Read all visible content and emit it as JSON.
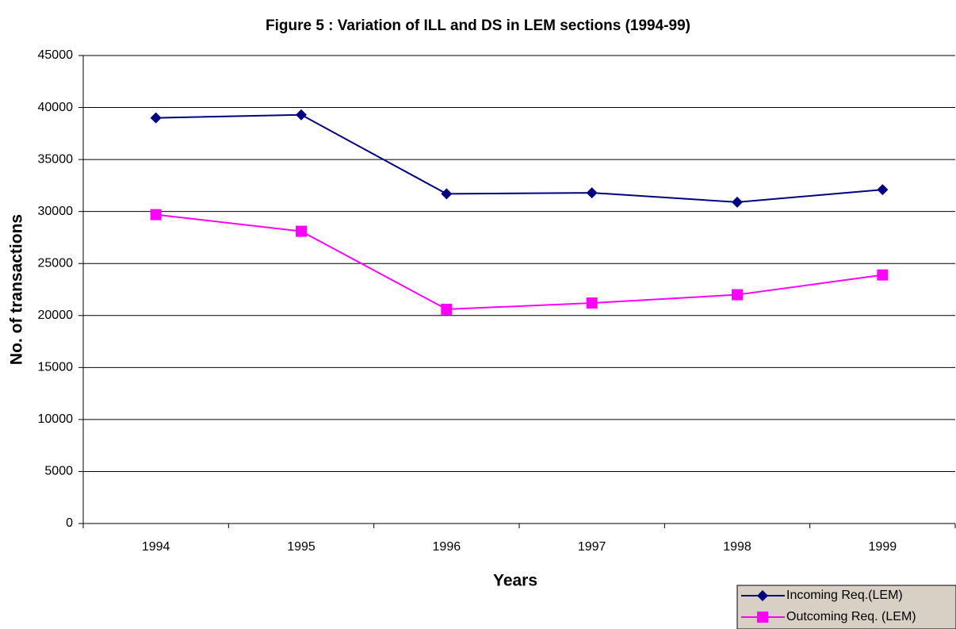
{
  "chart_data": {
    "type": "line",
    "title": "Figure 5 : Variation of ILL and DS in LEM sections (1994-99)",
    "x_label": "Years",
    "y_label": "No. of transactions",
    "categories": [
      "1994",
      "1995",
      "1996",
      "1997",
      "1998",
      "1999"
    ],
    "series": [
      {
        "name": "Incoming Req.(LEM)",
        "color": "#000080",
        "marker": "diamond",
        "values": [
          39000,
          39300,
          31700,
          31800,
          30900,
          32100
        ]
      },
      {
        "name": "Outcoming Req. (LEM)",
        "color": "#ff00ff",
        "marker": "square",
        "values": [
          29700,
          28100,
          20600,
          21200,
          22000,
          23900
        ]
      }
    ],
    "ylim": [
      0,
      45000
    ],
    "yticks": [
      0,
      5000,
      10000,
      15000,
      20000,
      25000,
      30000,
      35000,
      40000,
      45000
    ],
    "grid": true,
    "legend": "bottom-right"
  }
}
